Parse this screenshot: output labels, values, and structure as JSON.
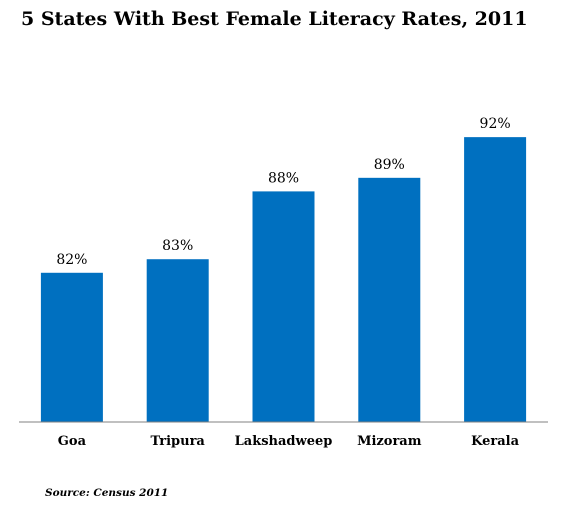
{
  "chart_data": {
    "type": "bar",
    "title": "5 States With Best Female Literacy Rates, 2011",
    "categories": [
      "Goa",
      "Tripura",
      "Lakshadweep",
      "Mizoram",
      "Kerala"
    ],
    "values": [
      82,
      83,
      88,
      89,
      92
    ],
    "data_labels": [
      "82%",
      "83%",
      "88%",
      "89%",
      "92%"
    ],
    "ylim": [
      71,
      94
    ],
    "bar_color": "#0070c0",
    "axis_color": "#808080",
    "grid": false,
    "legend": "none",
    "source": "Source: Census 2011"
  }
}
